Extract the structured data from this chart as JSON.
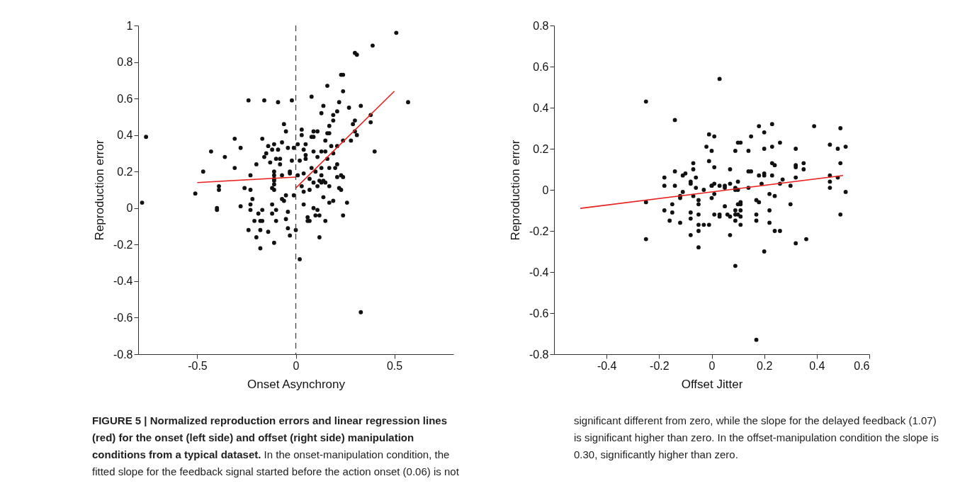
{
  "chart_data": [
    {
      "type": "scatter",
      "title": "FIGURE 5 | Normalized reproduction errors and linear regression lines (red) for the onset (left side) and offset (right side) manipulation conditions from a typical dataset.",
      "annotations": [
        "In the onset-manipulation condition, the fitted slope for the feedback signal started before the action onset (0.06) is not significant different from zero, while the slope for the delayed feedback (1.07) is significant higher than zero. In the offset-manipulation condition the slope is 0.30, significantly higher than zero."
      ],
      "xlabel": "Onset Asynchrony",
      "ylabel": "Reproduction error",
      "xlim": [
        -0.8,
        0.8
      ],
      "xticks": [
        -0.5,
        0,
        0.5
      ],
      "ylim": [
        -0.8,
        1
      ],
      "yticks": [
        -0.8,
        -0.6,
        -0.4,
        -0.2,
        0,
        0.2,
        0.4,
        0.6,
        0.8,
        1
      ],
      "ref_lines": [
        {
          "axis": "x",
          "value": 0,
          "color": "#444444",
          "line_style": "dashed"
        }
      ],
      "series": [
        {
          "type": "scatter",
          "marker": "circle",
          "color": "#111111",
          "x": [
            0.51,
            0.39,
            0.3,
            0.31,
            0.23,
            0.24,
            0.16,
            0.24,
            0.08,
            -0.24,
            -0.16,
            -0.09,
            -0.02,
            0.57,
            0.14,
            0.33,
            0.22,
            0.27,
            0.21,
            0.13,
            0.19,
            0.38,
            0.38,
            0.3,
            0.19,
            -0.06,
            0.29,
            0.17,
            -0.76,
            0.03,
            -0.05,
            0.09,
            0.11,
            0.3,
            0.03,
            0.16,
            0.17,
            0.08,
            0.09,
            0.31,
            -0.31,
            -0.17,
            0.24,
            0.28,
            0.15,
            -0.07,
            0.01,
            0.05,
            0.18,
            -0.14,
            -0.11,
            0.21,
            -0.28,
            -0.12,
            -0.09,
            -0.04,
            -0.01,
            0.04,
            0.09,
            0.13,
            0.15,
            -0.43,
            0.4,
            0.19,
            -0.15,
            -0.36,
            -0.16,
            0.05,
            0.05,
            0.11,
            -0.1,
            -0.08,
            0.16,
            -0.02,
            0.02,
            -0.13,
            -0.08,
            0.21,
            -0.2,
            0.17,
            0.08,
            0.13,
            0.2,
            -0.47,
            -0.31,
            -0.11,
            -0.03,
            -0.03,
            -0.23,
            -0.07,
            0.01,
            0.04,
            0.1,
            0.13,
            -0.11,
            0.23,
            0.24,
            0.21,
            0.07,
            -0.11,
            -0.11,
            0.09,
            0.12,
            0.14,
            0.13,
            0.15,
            -0.39,
            -0.11,
            0.03,
            0.17,
            0.11,
            -0.26,
            0.22,
            -0.39,
            -0.23,
            -0.12,
            -0.11,
            0.07,
            0.23,
            -0.51,
            -0.78,
            -0.01,
            -0.05,
            -0.07,
            -0.06,
            -0.22,
            -0.23,
            -0.28,
            -0.4,
            -0.4,
            0.04,
            0.14,
            0.17,
            0.19,
            0.26,
            0.04,
            -0.12,
            -0.23,
            -0.17,
            -0.1,
            -0.19,
            -0.12,
            -0.04,
            0.09,
            0.11,
            -0.21,
            -0.18,
            -0.17,
            -0.1,
            -0.05,
            0.06,
            0.07,
            0.06,
            0.1,
            0.12,
            0.15,
            0.24,
            -0.24,
            -0.18,
            -0.14,
            -0.04,
            0.0,
            -0.2,
            -0.03,
            -0.11,
            -0.18,
            0.12,
            0.02,
            0.33
          ],
          "values": [
            0.96,
            0.89,
            0.85,
            0.84,
            0.73,
            0.73,
            0.67,
            0.64,
            0.61,
            0.59,
            0.59,
            0.58,
            0.59,
            0.58,
            0.56,
            0.56,
            0.58,
            0.55,
            0.53,
            0.52,
            0.51,
            0.51,
            0.47,
            0.48,
            0.48,
            0.46,
            0.46,
            0.45,
            0.39,
            0.43,
            0.42,
            0.42,
            0.42,
            0.42,
            0.4,
            0.41,
            0.41,
            0.39,
            0.39,
            0.4,
            0.38,
            0.38,
            0.37,
            0.37,
            0.37,
            0.36,
            0.35,
            0.35,
            0.34,
            0.34,
            0.35,
            0.34,
            0.33,
            0.32,
            0.32,
            0.33,
            0.33,
            0.32,
            0.31,
            0.31,
            0.31,
            0.31,
            0.31,
            0.3,
            0.3,
            0.28,
            0.28,
            0.29,
            0.27,
            0.28,
            0.27,
            0.27,
            0.27,
            0.26,
            0.26,
            0.25,
            0.24,
            0.24,
            0.24,
            0.22,
            0.22,
            0.22,
            0.22,
            0.2,
            0.22,
            0.2,
            0.2,
            0.19,
            0.18,
            0.18,
            0.18,
            0.19,
            0.2,
            0.18,
            0.18,
            0.18,
            0.17,
            0.17,
            0.16,
            0.16,
            0.15,
            0.14,
            0.15,
            0.15,
            0.14,
            0.14,
            0.12,
            0.13,
            0.12,
            0.12,
            0.12,
            0.11,
            0.11,
            0.1,
            0.1,
            0.11,
            0.1,
            0.1,
            0.1,
            0.08,
            0.03,
            0.07,
            0.07,
            0.05,
            0.04,
            0.05,
            0.02,
            0.01,
            -0.01,
            0.0,
            0.09,
            0.06,
            0.03,
            0.04,
            0.03,
            0.02,
            0.02,
            -0.01,
            -0.01,
            -0.01,
            -0.03,
            -0.03,
            -0.02,
            0.0,
            -0.01,
            -0.07,
            -0.07,
            -0.07,
            -0.07,
            -0.06,
            -0.05,
            -0.07,
            -0.07,
            -0.04,
            -0.04,
            -0.07,
            -0.04,
            -0.12,
            -0.12,
            -0.13,
            -0.11,
            -0.12,
            -0.16,
            -0.15,
            -0.19,
            -0.22,
            -0.16,
            -0.28,
            -0.57
          ]
        },
        {
          "type": "line",
          "color": "#e8211f",
          "x": [
            -0.5,
            0
          ],
          "values": [
            0.14,
            0.17
          ]
        },
        {
          "type": "line",
          "color": "#e8211f",
          "x": [
            0,
            0.5
          ],
          "values": [
            0.11,
            0.64
          ]
        }
      ]
    },
    {
      "type": "scatter",
      "xlabel": "Offset Jitter",
      "ylabel": "Reproduction error",
      "xlim": [
        -0.6,
        0.6
      ],
      "xticks": [
        -0.4,
        -0.2,
        0,
        0.2,
        0.4,
        0.6
      ],
      "ylim": [
        -0.8,
        0.8
      ],
      "yticks": [
        -0.8,
        -0.6,
        -0.4,
        -0.2,
        0,
        0.2,
        0.4,
        0.6,
        0.8
      ],
      "series": [
        {
          "type": "scatter",
          "marker": "circle",
          "color": "#111111",
          "x": [
            -0.25,
            0.03,
            -0.14,
            0.23,
            0.18,
            0.39,
            0.49,
            0.2,
            -0.01,
            0.01,
            0.15,
            0.26,
            0.1,
            0.11,
            -0.02,
            0.23,
            0.45,
            0.48,
            0.51,
            0.09,
            0.14,
            0.0,
            0.2,
            0.32,
            -0.07,
            -0.01,
            0.23,
            0.24,
            0.32,
            0.32,
            0.35,
            0.49,
            -0.14,
            -0.07,
            0.01,
            0.07,
            0.14,
            0.15,
            0.35,
            -0.1,
            -0.11,
            -0.18,
            -0.06,
            0.18,
            0.2,
            0.2,
            0.23,
            0.32,
            0.45,
            0.48,
            -0.08,
            -0.08,
            -0.18,
            -0.14,
            0.1,
            0.27,
            0.26,
            0.19,
            0.45,
            0.07,
            0.0,
            0.01,
            0.03,
            0.05,
            0.3,
            -0.06,
            -0.03,
            0.14,
            0.09,
            0.0,
            0.05,
            0.09,
            0.1,
            0.45,
            0.51,
            -0.25,
            -0.11,
            -0.12,
            -0.12,
            -0.07,
            -0.05,
            -0.05,
            0.0,
            0.01,
            -0.18,
            -0.15,
            -0.15,
            -0.16,
            -0.12,
            -0.08,
            -0.08,
            -0.05,
            -0.05,
            -0.05,
            -0.03,
            -0.01,
            -0.08,
            -0.05,
            0.01,
            0.03,
            0.03,
            0.05,
            0.06,
            0.07,
            0.09,
            0.09,
            0.09,
            0.1,
            0.1,
            0.11,
            0.11,
            0.11,
            0.11,
            0.11,
            0.07,
            0.09,
            0.17,
            0.18,
            0.17,
            0.17,
            0.22,
            0.24,
            0.22,
            0.22,
            0.24,
            0.26,
            0.3,
            0.49,
            0.2,
            0.32,
            0.36,
            0.17,
            -0.25
          ],
          "values": [
            0.43,
            0.54,
            0.34,
            0.32,
            0.31,
            0.31,
            0.3,
            0.28,
            0.27,
            0.26,
            0.26,
            0.23,
            0.23,
            0.23,
            0.21,
            0.21,
            0.22,
            0.2,
            0.21,
            0.19,
            0.19,
            0.19,
            0.2,
            0.2,
            0.13,
            0.14,
            0.13,
            0.12,
            0.12,
            0.11,
            0.13,
            0.13,
            0.09,
            0.1,
            0.11,
            0.1,
            0.09,
            0.09,
            0.1,
            0.08,
            0.07,
            0.06,
            0.06,
            0.07,
            0.08,
            0.07,
            0.07,
            0.06,
            0.07,
            0.06,
            0.04,
            0.03,
            0.02,
            0.02,
            0.04,
            0.05,
            0.03,
            0.03,
            0.04,
            0.03,
            0.02,
            0.03,
            0.02,
            0.02,
            0.02,
            0.01,
            0.0,
            0.01,
            0.01,
            0.02,
            0.01,
            0.0,
            0.0,
            0.01,
            -0.01,
            -0.06,
            -0.01,
            -0.04,
            -0.03,
            -0.03,
            -0.05,
            -0.07,
            -0.04,
            -0.02,
            -0.1,
            -0.07,
            -0.11,
            -0.15,
            -0.16,
            -0.11,
            -0.14,
            -0.12,
            -0.17,
            -0.2,
            -0.17,
            -0.17,
            -0.22,
            -0.28,
            -0.12,
            -0.12,
            -0.13,
            -0.08,
            -0.12,
            -0.13,
            -0.1,
            -0.15,
            -0.12,
            -0.12,
            -0.07,
            -0.06,
            -0.07,
            -0.1,
            -0.13,
            -0.17,
            -0.22,
            -0.37,
            -0.05,
            -0.06,
            -0.12,
            -0.15,
            -0.02,
            -0.03,
            -0.1,
            -0.16,
            -0.2,
            -0.2,
            -0.07,
            -0.12,
            -0.3,
            -0.26,
            -0.24,
            -0.73,
            -0.24
          ]
        },
        {
          "type": "line",
          "color": "#e8211f",
          "x": [
            -0.5,
            0.5
          ],
          "values": [
            -0.09,
            0.07
          ]
        }
      ]
    }
  ]
}
